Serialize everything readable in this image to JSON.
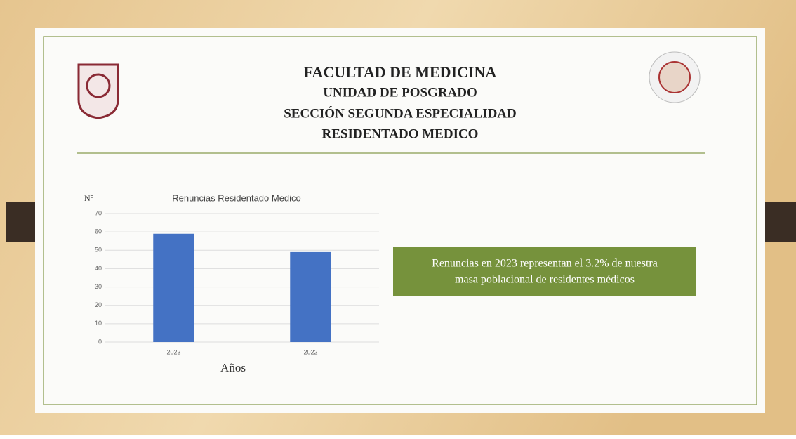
{
  "header": {
    "lines": [
      "FACULTAD DE MEDICINA",
      "UNIDAD DE POSGRADO",
      "SECCIÓN SEGUNDA ESPECIALIDAD",
      "RESIDENTADO MEDICO"
    ]
  },
  "callout": {
    "lines": [
      "Renuncias en 2023 representan el 3.2% de nuestra",
      "masa poblacional de residentes médicos"
    ]
  },
  "chart_data": {
    "type": "bar",
    "title": "Renuncias Residentado Medico",
    "y_label": "N°",
    "x_label": "Años",
    "categories": [
      "2023",
      "2022"
    ],
    "values": [
      59,
      49
    ],
    "color": "#4472c4",
    "ylim": [
      0,
      70
    ],
    "yticks": [
      0,
      10,
      20,
      30,
      40,
      50,
      60,
      70
    ],
    "grid": true
  }
}
